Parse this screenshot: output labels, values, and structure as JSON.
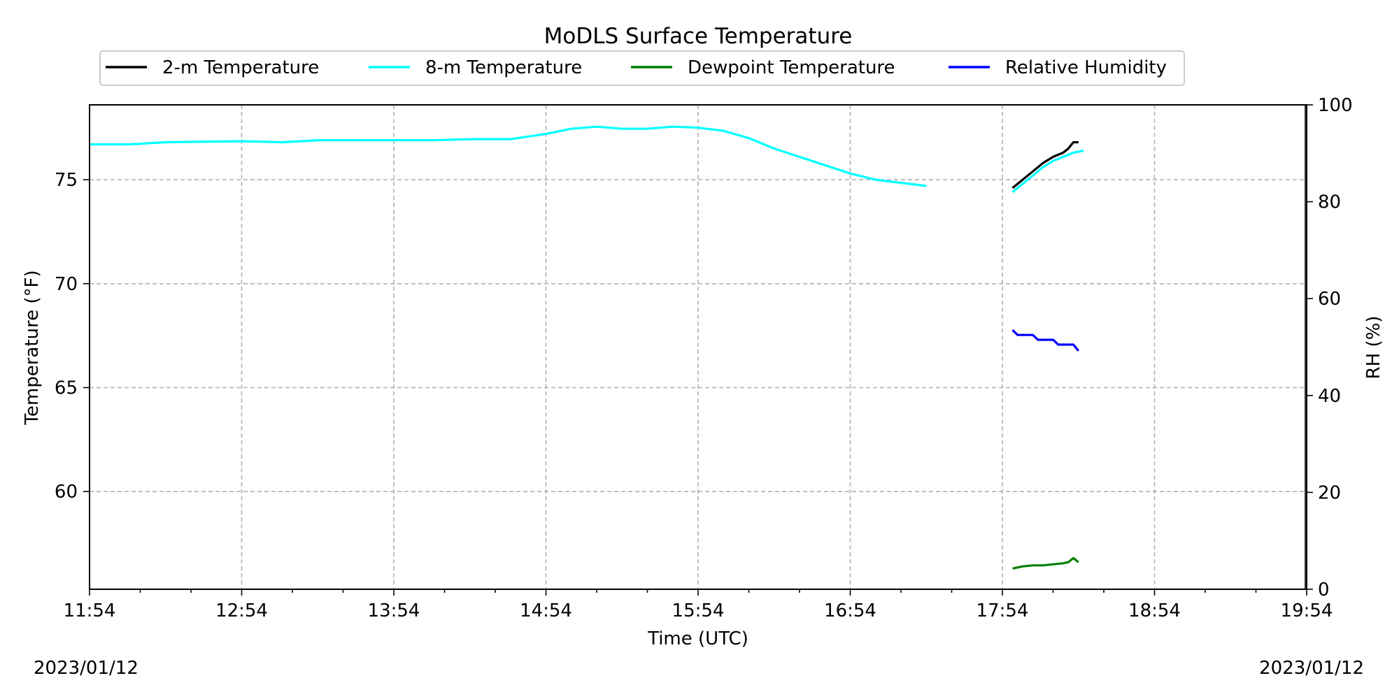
{
  "chart_data": {
    "type": "line",
    "title": "MoDLS Surface Temperature",
    "xlabel": "Time (UTC)",
    "ylabel": "Temperature ($^\\circ$F)",
    "ylabel_display": "Temperature (°F)",
    "y2label": "RH (%)",
    "x_ticks": [
      "11:54",
      "12:54",
      "13:54",
      "14:54",
      "15:54",
      "16:54",
      "17:54",
      "18:54",
      "19:54"
    ],
    "y_ticks": [
      "60",
      "65",
      "70",
      "75"
    ],
    "y2_ticks": [
      "0",
      "20",
      "40",
      "60",
      "80",
      "100"
    ],
    "xlim": [
      "11:54",
      "19:54"
    ],
    "ylim": [
      55.3,
      78.6
    ],
    "y2lim": [
      0,
      100
    ],
    "grid": true,
    "legend_position": "top",
    "series": [
      {
        "name": "2-m Temperature",
        "color": "#000000",
        "axis": "left",
        "points": [
          [
            "17:58",
            74.6
          ],
          [
            "18:02",
            75.0
          ],
          [
            "18:06",
            75.4
          ],
          [
            "18:10",
            75.8
          ],
          [
            "18:14",
            76.1
          ],
          [
            "18:18",
            76.3
          ],
          [
            "18:20",
            76.5
          ],
          [
            "18:22",
            76.8
          ],
          [
            "18:24",
            76.8
          ]
        ]
      },
      {
        "name": "8-m Temperature",
        "color": "#00ffff",
        "axis": "left",
        "points": [
          [
            "11:54",
            76.7
          ],
          [
            "12:10",
            76.7
          ],
          [
            "12:24",
            76.8
          ],
          [
            "12:54",
            76.85
          ],
          [
            "13:10",
            76.8
          ],
          [
            "13:24",
            76.9
          ],
          [
            "13:54",
            76.9
          ],
          [
            "14:10",
            76.9
          ],
          [
            "14:24",
            76.95
          ],
          [
            "14:40",
            76.95
          ],
          [
            "14:54",
            77.2
          ],
          [
            "15:04",
            77.45
          ],
          [
            "15:14",
            77.55
          ],
          [
            "15:24",
            77.45
          ],
          [
            "15:34",
            77.45
          ],
          [
            "15:44",
            77.55
          ],
          [
            "15:54",
            77.5
          ],
          [
            "16:04",
            77.35
          ],
          [
            "16:14",
            77.0
          ],
          [
            "16:24",
            76.5
          ],
          [
            "16:34",
            76.1
          ],
          [
            "16:44",
            75.7
          ],
          [
            "16:54",
            75.3
          ],
          [
            "17:04",
            75.0
          ],
          [
            "17:24",
            74.7
          ]
        ],
        "points_segment2": [
          [
            "17:58",
            74.4
          ],
          [
            "18:02",
            74.8
          ],
          [
            "18:06",
            75.2
          ],
          [
            "18:10",
            75.6
          ],
          [
            "18:14",
            75.9
          ],
          [
            "18:18",
            76.1
          ],
          [
            "18:22",
            76.3
          ],
          [
            "18:26",
            76.4
          ]
        ]
      },
      {
        "name": "Dewpoint Temperature",
        "color": "#008000",
        "axis": "left",
        "points": [
          [
            "17:58",
            56.3
          ],
          [
            "18:02",
            56.4
          ],
          [
            "18:06",
            56.45
          ],
          [
            "18:10",
            56.45
          ],
          [
            "18:14",
            56.5
          ],
          [
            "18:18",
            56.55
          ],
          [
            "18:20",
            56.6
          ],
          [
            "18:22",
            56.8
          ],
          [
            "18:24",
            56.6
          ]
        ]
      },
      {
        "name": "Relative Humidity",
        "color": "#0000ff",
        "axis": "right",
        "points": [
          [
            "17:58",
            53.5
          ],
          [
            "18:00",
            52.5
          ],
          [
            "18:06",
            52.5
          ],
          [
            "18:08",
            51.5
          ],
          [
            "18:14",
            51.5
          ],
          [
            "18:16",
            50.5
          ],
          [
            "18:22",
            50.5
          ],
          [
            "18:24",
            49.2
          ]
        ]
      }
    ]
  },
  "footer": {
    "date_left": "2023/01/12",
    "date_right": "2023/01/12"
  }
}
